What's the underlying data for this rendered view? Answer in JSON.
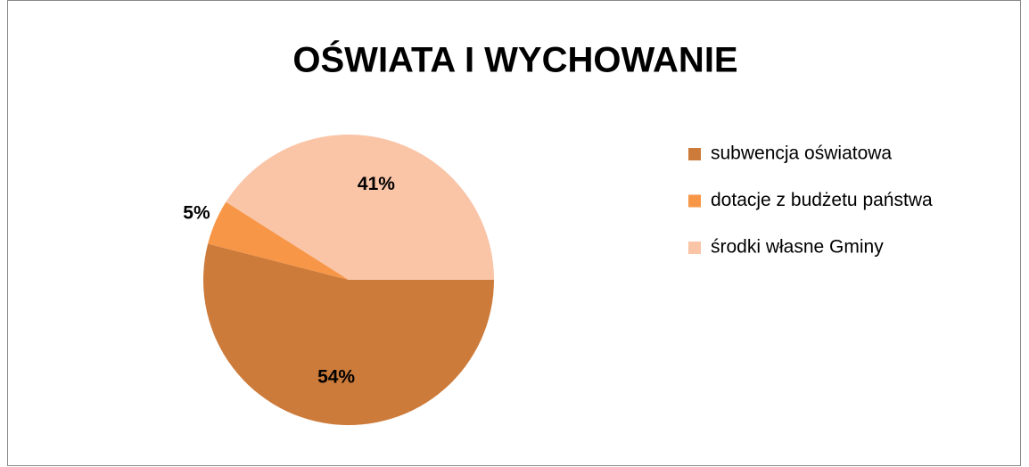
{
  "chart_data": {
    "type": "pie",
    "title": "OŚWIATA I WYCHOWANIE",
    "categories": [
      "subwencja oświatowa",
      "dotacje z budżetu państwa",
      "środki własne Gminy"
    ],
    "values": [
      54,
      5,
      41
    ],
    "value_labels": [
      "54%",
      "5%",
      "41%"
    ],
    "colors": [
      "#cd7b3a",
      "#f79646",
      "#fac4a7"
    ],
    "legend": "right"
  }
}
